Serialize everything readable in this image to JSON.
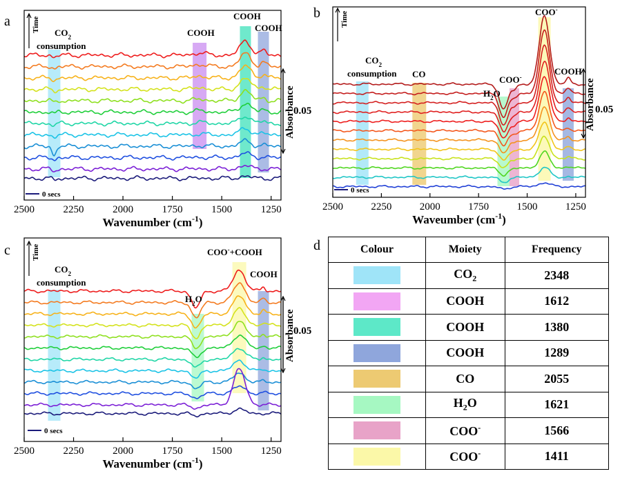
{
  "panels": {
    "a": {
      "label": "a",
      "x_axis": {
        "label": "Wavenumber (cm",
        "label_sup": "-1",
        "label_end": ")",
        "range": [
          2500,
          1200
        ],
        "ticks": [
          "2500",
          "2250",
          "2000",
          "1750",
          "1500",
          "1250"
        ]
      },
      "time_label": "Time",
      "absorbance_label": "Absorbance",
      "scale_label": "0.05",
      "secs_label": "0 secs",
      "annotations": [
        {
          "text": "CO",
          "sub": "2",
          "sub_text": "consumption"
        },
        {
          "text": "COOH"
        },
        {
          "text": "COOH"
        },
        {
          "text": "COOH"
        }
      ]
    },
    "b": {
      "label": "b",
      "x_axis": {
        "label": "Waveumber (cm",
        "label_sup": "-1",
        "label_end": ")",
        "range": [
          2500,
          1200
        ],
        "ticks": [
          "2500",
          "2250",
          "2000",
          "1750",
          "1500",
          "1250"
        ]
      },
      "time_label": "Time",
      "absorbance_label": "Absorbance",
      "scale_label": "0.05",
      "secs_label": "0 secs",
      "annotations": [
        {
          "text": "CO",
          "sub": "2",
          "sub_text": "consumption"
        },
        {
          "text": "CO"
        },
        {
          "text": "H",
          "sub": "2",
          "after": "O"
        },
        {
          "text": "COO",
          "sup": "-"
        },
        {
          "text": "COO",
          "sup": "-"
        },
        {
          "text": "COOH"
        }
      ]
    },
    "c": {
      "label": "c",
      "x_axis": {
        "label": "Wavenumber (cm",
        "label_sup": "-1",
        "label_end": ")",
        "range": [
          2500,
          1200
        ],
        "ticks": [
          "2500",
          "2250",
          "2000",
          "1750",
          "1500",
          "1250"
        ]
      },
      "time_label": "Time",
      "absorbance_label": "Absorbance",
      "scale_label": "0.05",
      "secs_label": "0 secs",
      "annotations": [
        {
          "text": "CO",
          "sub": "2",
          "sub_text": "consumption"
        },
        {
          "text": "H",
          "sub": "2",
          "after": "O"
        },
        {
          "text": "COO",
          "sup": "-",
          "after": "+COOH"
        },
        {
          "text": "COOH"
        }
      ]
    },
    "d": {
      "label": "d",
      "headers": [
        "Colour",
        "Moiety",
        "Frequency"
      ],
      "rows": [
        {
          "color": "#9fe4f8",
          "moiety": "CO",
          "sub": "2",
          "frequency": "2348"
        },
        {
          "color": "#f2a6f4",
          "moiety": "COOH",
          "frequency": "1612"
        },
        {
          "color": "#5de8c8",
          "moiety": "COOH",
          "frequency": "1380"
        },
        {
          "color": "#8fa6dc",
          "moiety": "COOH",
          "frequency": "1289"
        },
        {
          "color": "#edca72",
          "moiety": "CO",
          "frequency": "2055"
        },
        {
          "color": "#a6f8c2",
          "moiety": "H",
          "sub": "2",
          "after": "O",
          "frequency": "1621"
        },
        {
          "color": "#e8a3c8",
          "moiety": "COO",
          "sup": "-",
          "frequency": "1566"
        },
        {
          "color": "#fbf8a8",
          "moiety": "COO",
          "sup": "-",
          "frequency": "1411"
        }
      ]
    }
  },
  "chart_data": [
    {
      "type": "line",
      "panel": "a",
      "xlabel": "Wavenumber (cm-1)",
      "ylabel": "Absorbance",
      "xlim": [
        2500,
        1200
      ],
      "series_count": 12,
      "series_colors": [
        "#ee1c1c",
        "#f47b20",
        "#f7b21a",
        "#d4e21c",
        "#8ee01f",
        "#1fcf3a",
        "#1fd6a6",
        "#1ac3e6",
        "#1a8fd6",
        "#1f4fe0",
        "#7b1fd6",
        "#1a1a7a"
      ],
      "highlight_bands": [
        {
          "center": 2348,
          "color": "#9fe4f8"
        },
        {
          "center": 1612,
          "color": "#c98cf0"
        },
        {
          "center": 1380,
          "color": "#3fe2bb"
        },
        {
          "center": 1289,
          "color": "#8fa6dc"
        }
      ]
    },
    {
      "type": "line",
      "panel": "b",
      "xlabel": "Waveumber (cm-1)",
      "ylabel": "Absorbance",
      "xlim": [
        2500,
        1200
      ],
      "series_count": 12,
      "series_colors": [
        "#b31a1a",
        "#c41c1c",
        "#d41e1e",
        "#e01f1f",
        "#ee1c1c",
        "#f4571c",
        "#f4931e",
        "#f2c41a",
        "#c8e21c",
        "#4fd61f",
        "#1fc6c6",
        "#1f3fd6"
      ],
      "highlight_bands": [
        {
          "center": 2348,
          "color": "#9fe4f8"
        },
        {
          "center": 2055,
          "color": "#edca72"
        },
        {
          "center": 1621,
          "color": "#a6f8c2"
        },
        {
          "center": 1566,
          "color": "#e8a3c8"
        },
        {
          "center": 1411,
          "color": "#fbf8a8"
        },
        {
          "center": 1289,
          "color": "#8fa6dc"
        }
      ]
    },
    {
      "type": "line",
      "panel": "c",
      "xlabel": "Wavenumber (cm-1)",
      "ylabel": "Absorbance",
      "xlim": [
        2500,
        1200
      ],
      "series_count": 12,
      "series_colors": [
        "#ee1c1c",
        "#f47b20",
        "#f7b21a",
        "#d4e21c",
        "#8ee01f",
        "#1fcf3a",
        "#1fd6a6",
        "#1ac3e6",
        "#1a8fd6",
        "#1f4fe0",
        "#7b1fd6",
        "#1a1a7a"
      ],
      "highlight_bands": [
        {
          "center": 2348,
          "color": "#9fe4f8"
        },
        {
          "center": 1621,
          "color": "#a6f8c2"
        },
        {
          "center": 1411,
          "color": "#fbf8a8"
        },
        {
          "center": 1289,
          "color": "#8fa6dc"
        }
      ]
    }
  ]
}
